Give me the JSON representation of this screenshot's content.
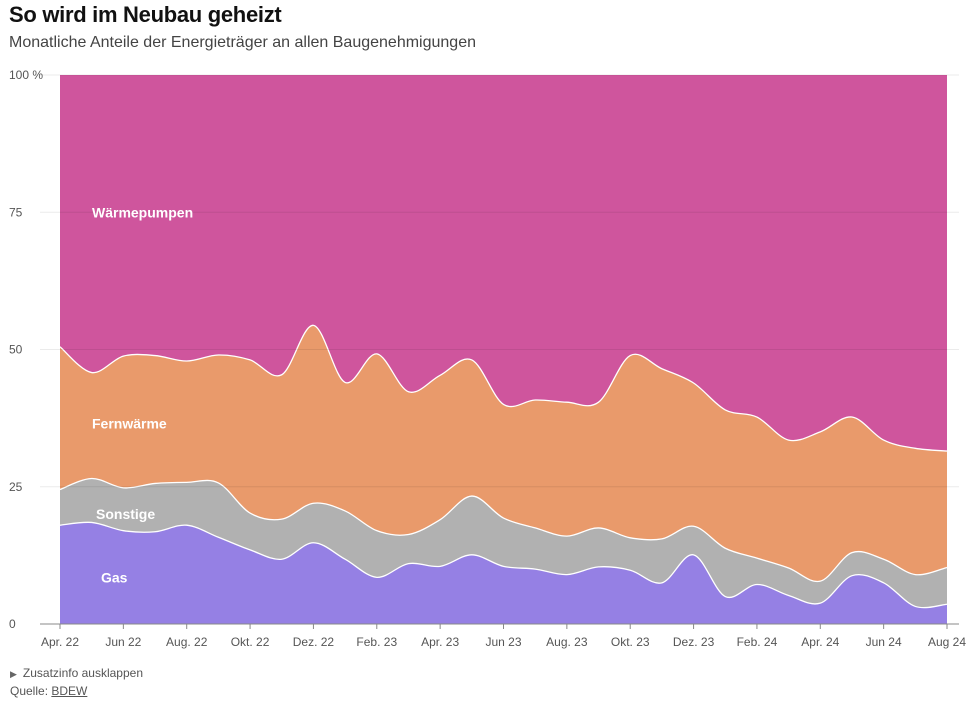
{
  "header": {
    "title": "So wird im Neubau geheizt",
    "subtitle": "Monatliche Anteile der Energieträger an allen Baugenehmigungen"
  },
  "footer": {
    "zusatzinfo_label": "Zusatzinfo ausklappen",
    "source_prefix": "Quelle: ",
    "source_link": "BDEW"
  },
  "colors": {
    "gas": "#9580e4",
    "sonstige": "#b1b1b1",
    "fernwaerme": "#e99a6b",
    "waermepumpen": "#cf559d"
  },
  "chart_data": {
    "type": "area",
    "stacked": true,
    "title": "So wird im Neubau geheizt",
    "subtitle": "Monatliche Anteile der Energieträger an allen Baugenehmigungen",
    "xlabel": "",
    "ylabel": "",
    "ylim": [
      0,
      100
    ],
    "yticks": [
      0,
      25,
      50,
      75,
      100
    ],
    "ytick_labels": [
      "0",
      "25",
      "50",
      "75",
      "100 %"
    ],
    "x": [
      "Apr. 22",
      "Mai 22",
      "Jun 22",
      "Jul 22",
      "Aug. 22",
      "Sep. 22",
      "Okt. 22",
      "Nov. 22",
      "Dez. 22",
      "Jan. 23",
      "Feb. 23",
      "Mär. 23",
      "Apr. 23",
      "Mai 23",
      "Jun 23",
      "Jul 23",
      "Aug. 23",
      "Sep. 23",
      "Okt. 23",
      "Nov. 23",
      "Dez. 23",
      "Jan. 24",
      "Feb. 24",
      "Mär. 24",
      "Apr. 24",
      "Mai 24",
      "Jun 24",
      "Jul 24",
      "Aug 24"
    ],
    "xtick_labels": [
      "Apr. 22",
      "Jun 22",
      "Aug. 22",
      "Okt. 22",
      "Dez. 22",
      "Feb. 23",
      "Apr. 23",
      "Jun 23",
      "Aug. 23",
      "Okt. 23",
      "Dez. 23",
      "Feb. 24",
      "Apr. 24",
      "Jun 24",
      "Aug 24"
    ],
    "series": [
      {
        "name": "Gas",
        "values": [
          18,
          18.5,
          17,
          16.8,
          18,
          15.8,
          13.5,
          11.8,
          14.8,
          11.8,
          8.5,
          11,
          10.5,
          12.6,
          10.5,
          10,
          9,
          10.4,
          9.8,
          7.5,
          12.6,
          5,
          7.2,
          5.2,
          3.8,
          8.8,
          7.5,
          3.2,
          3.6
        ]
      },
      {
        "name": "Sonstige",
        "values": [
          6.5,
          8,
          7.8,
          8.8,
          7.8,
          9.9,
          6.7,
          7.3,
          7.2,
          8.8,
          8.5,
          5.3,
          8.5,
          10.7,
          8.8,
          7.5,
          7,
          7.1,
          5.9,
          8,
          5.2,
          8.8,
          4.8,
          5,
          4,
          4.2,
          4.3,
          5.8,
          6.7
        ]
      },
      {
        "name": "Fernwärme",
        "values": [
          26,
          19.3,
          24,
          23.3,
          22.1,
          23.3,
          27.9,
          26.3,
          32.4,
          23.4,
          32.2,
          26,
          26.3,
          24.8,
          20.7,
          23.3,
          24.4,
          22.9,
          33.2,
          31,
          26.1,
          25.2,
          25.7,
          23.3,
          27.2,
          24.7,
          21.7,
          23,
          21.2
        ]
      },
      {
        "name": "Wärmepumpen",
        "values": [
          49.5,
          54.2,
          51.2,
          51.1,
          52.1,
          51,
          51.9,
          54.6,
          45.6,
          56,
          50.8,
          57.7,
          54.7,
          51.9,
          60,
          59.2,
          59.6,
          59.6,
          51.1,
          53.5,
          56.1,
          61,
          62.3,
          66.5,
          65,
          62.3,
          66.5,
          68,
          68.5
        ]
      }
    ],
    "labels": [
      {
        "series": "Wärmepumpen",
        "text": "Wärmepumpen",
        "x_index": 0.5,
        "y": 75
      },
      {
        "series": "Fernwärme",
        "text": "Fernwärme",
        "x_index": 0.5,
        "y": 36.5
      },
      {
        "series": "Sonstige",
        "text": "Sonstige",
        "x_index": 0.5,
        "y": 20
      },
      {
        "series": "Gas",
        "text": "Gas",
        "x_index": 0.5,
        "y": 8.5
      }
    ]
  }
}
